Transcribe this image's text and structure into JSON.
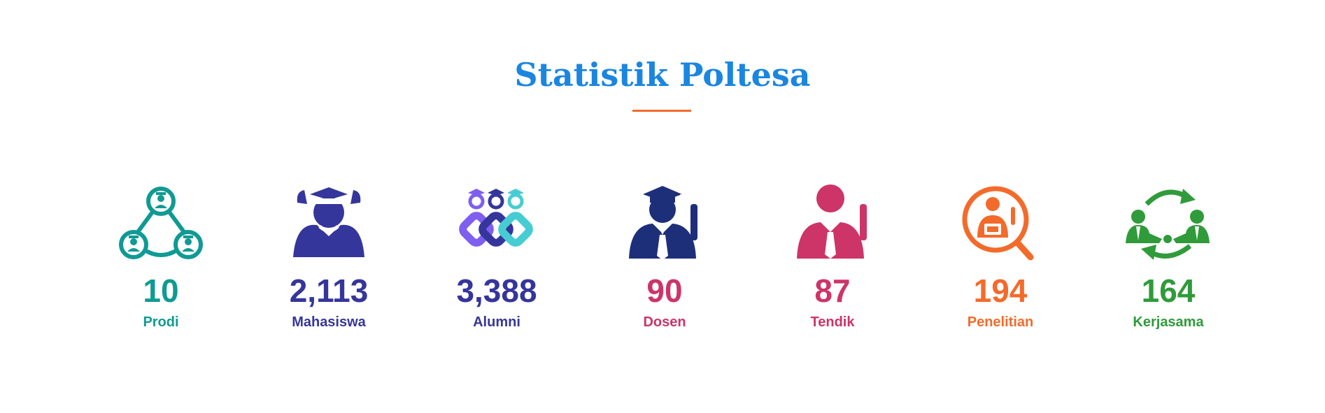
{
  "section": {
    "title": "Statistik Poltesa",
    "title_color": "#1a86e0",
    "divider_color": "#f36b2b"
  },
  "stats": [
    {
      "value": "10",
      "label": "Prodi",
      "color": "#109a94",
      "icon": "network-people-icon"
    },
    {
      "value": "2,113",
      "label": "Mahasiswa",
      "color": "#35369b",
      "icon": "students-icon"
    },
    {
      "value": "3,388",
      "label": "Alumni",
      "color": "#35369b",
      "icon": "alumni-chain-icon"
    },
    {
      "value": "90",
      "label": "Dosen",
      "color": "#cd3467",
      "icon": "lecturer-icon"
    },
    {
      "value": "87",
      "label": "Tendik",
      "color": "#cd3467",
      "icon": "staff-icon"
    },
    {
      "value": "194",
      "label": "Penelitian",
      "color": "#f36b2b",
      "icon": "research-icon"
    },
    {
      "value": "164",
      "label": "Kerjasama",
      "color": "#2f9b3a",
      "icon": "partnership-icon"
    }
  ]
}
